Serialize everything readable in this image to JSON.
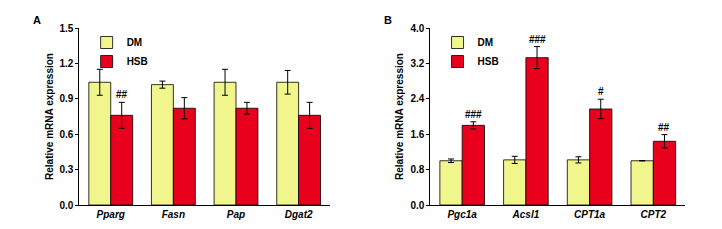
{
  "chart_data": [
    {
      "type": "bar",
      "title": "A",
      "categories": [
        "Pparg",
        "Fasn",
        "Pap",
        "Dgat2"
      ],
      "series": [
        {
          "name": "DM",
          "color": "#f0f58c",
          "values": [
            1.04,
            1.02,
            1.04,
            1.04
          ],
          "errors": [
            0.11,
            0.03,
            0.11,
            0.1
          ]
        },
        {
          "name": "HSB",
          "color": "#e8001c",
          "values": [
            0.76,
            0.82,
            0.82,
            0.76
          ],
          "errors": [
            0.11,
            0.09,
            0.05,
            0.11
          ]
        }
      ],
      "annotations": [
        {
          "category": "Pparg",
          "series": "HSB",
          "text": "##"
        }
      ],
      "ylabel": "Relative mRNA expression",
      "ylim": [
        0,
        1.5
      ],
      "yticks": [
        {
          "value": 0,
          "label": "0.0"
        },
        0.3,
        0.6,
        0.9,
        1.2,
        1.5
      ],
      "grid": false,
      "legend": "upper left"
    },
    {
      "type": "bar",
      "title": "B",
      "categories": [
        "Pgc1a",
        "Acsl1",
        "CPT1a",
        "CPT2"
      ],
      "series": [
        {
          "name": "DM",
          "color": "#f0f58c",
          "values": [
            1.0,
            1.02,
            1.02,
            1.0
          ],
          "errors": [
            0.04,
            0.08,
            0.07,
            0.0
          ]
        },
        {
          "name": "HSB",
          "color": "#e8001c",
          "values": [
            1.8,
            3.33,
            2.17,
            1.44
          ],
          "errors": [
            0.08,
            0.25,
            0.22,
            0.15
          ]
        }
      ],
      "annotations": [
        {
          "category": "Pgc1a",
          "series": "HSB",
          "text": "###"
        },
        {
          "category": "Acsl1",
          "series": "HSB",
          "text": "###"
        },
        {
          "category": "CPT1a",
          "series": "HSB",
          "text": "#"
        },
        {
          "category": "CPT2",
          "series": "HSB",
          "text": "##"
        }
      ],
      "ylabel": "Relative mRNA expression",
      "ylim": [
        0,
        4
      ],
      "yticks": [
        {
          "value": 0,
          "label": "0.0"
        },
        0.8,
        1.6,
        2.4,
        3.2,
        {
          "value": 4,
          "label": "4.0"
        }
      ],
      "grid": false,
      "legend": "upper left"
    }
  ]
}
